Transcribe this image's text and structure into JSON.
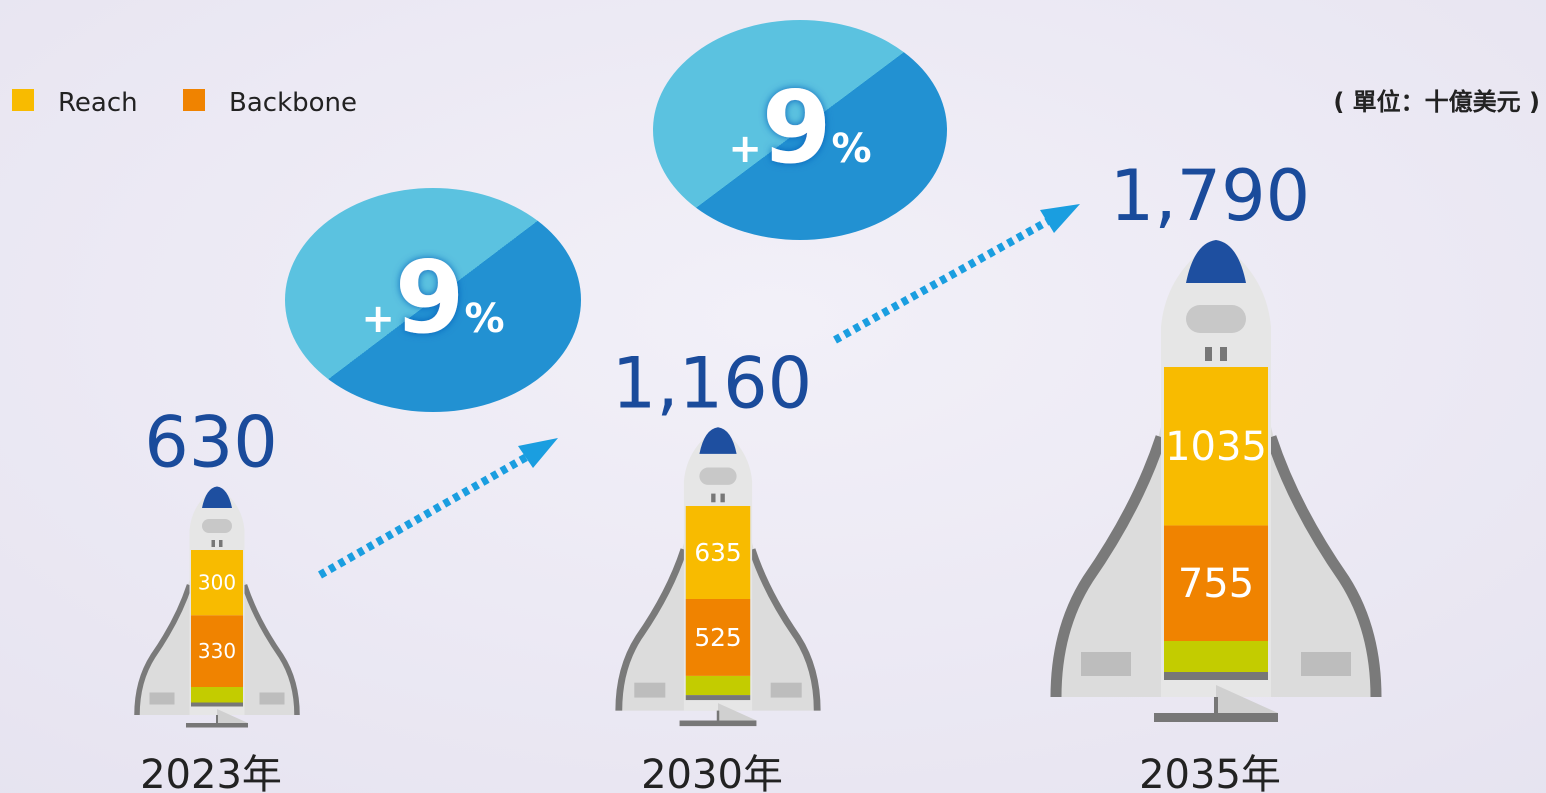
{
  "chart_data": {
    "type": "rocket-stack",
    "categories": [
      "2023年",
      "2030年",
      "2035年"
    ],
    "series": [
      {
        "name": "Reach",
        "color": "#f8bb00",
        "values": [
          300,
          635,
          1035
        ]
      },
      {
        "name": "Backbone",
        "color": "#f08300",
        "values": [
          330,
          525,
          755
        ]
      }
    ],
    "totals": [
      630,
      1160,
      1790
    ],
    "total_labels": [
      "630",
      "1,160",
      "1,790"
    ],
    "growth": [
      {
        "value": 9,
        "label": "+9%"
      },
      {
        "value": 9,
        "label": "+9%"
      }
    ],
    "unit": "( 單位：十億美元 )",
    "legend": "top-left"
  }
}
